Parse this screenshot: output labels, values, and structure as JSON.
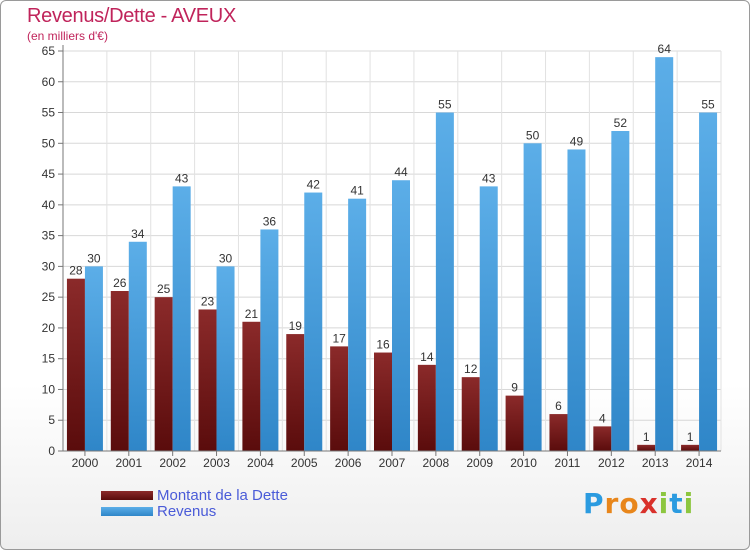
{
  "header": {
    "title": "Revenus/Dette - AVEUX",
    "subtitle": "(en milliers d'€)"
  },
  "legend": {
    "debt_label": "Montant de la Dette",
    "revenue_label": "Revenus"
  },
  "logo": {
    "letters": [
      "P",
      "r",
      "o",
      "x",
      "i",
      "t",
      "i"
    ],
    "colors": [
      "#2b9be0",
      "#e8861b",
      "#e8861b",
      "#d9312b",
      "#8cc63f",
      "#2b9be0",
      "#8cc63f"
    ]
  },
  "colors": {
    "debt_top": "#8b2a2a",
    "debt_bottom": "#5a0c0c",
    "revenue_light": "#5caee8",
    "revenue_dark": "#2f86c8"
  },
  "chart_data": {
    "type": "bar",
    "title": "Revenus/Dette - AVEUX",
    "ylabel": "(en milliers d'€)",
    "xlabel": "",
    "categories": [
      "2000",
      "2001",
      "2002",
      "2003",
      "2004",
      "2005",
      "2006",
      "2007",
      "2008",
      "2009",
      "2010",
      "2011",
      "2012",
      "2013",
      "2014"
    ],
    "series": [
      {
        "name": "Montant de la Dette",
        "values": [
          28,
          26,
          25,
          23,
          21,
          19,
          17,
          16,
          14,
          12,
          9,
          6,
          4,
          1,
          1
        ]
      },
      {
        "name": "Revenus",
        "values": [
          30,
          34,
          43,
          30,
          36,
          42,
          41,
          44,
          55,
          43,
          50,
          49,
          52,
          64,
          55
        ]
      }
    ],
    "ylim": [
      0,
      65
    ],
    "yticks": [
      0,
      5,
      10,
      15,
      20,
      25,
      30,
      35,
      40,
      45,
      50,
      55,
      60,
      65
    ],
    "grid": true,
    "legend_position": "bottom-left"
  }
}
